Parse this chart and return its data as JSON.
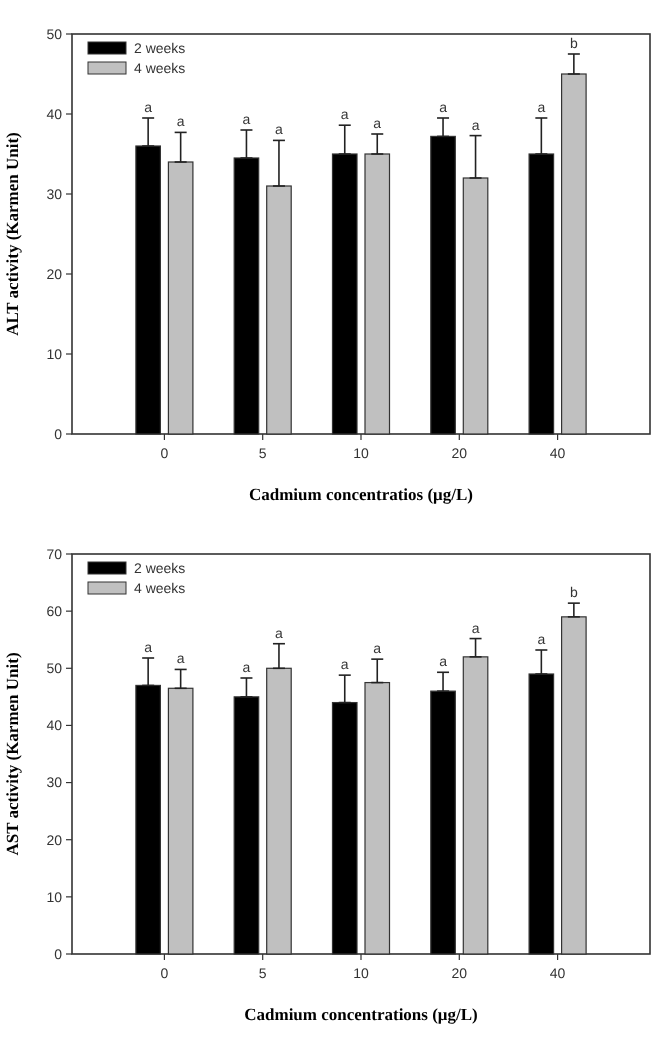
{
  "chart_data": [
    {
      "type": "bar",
      "xlabel": "Cadmium concentratios (μg/L)",
      "ylabel": "ALT activity (Karmen Unit)",
      "categories": [
        "0",
        "5",
        "10",
        "20",
        "40"
      ],
      "ylim": [
        0,
        50
      ],
      "yticks": [
        0,
        10,
        20,
        30,
        40,
        50
      ],
      "legend": "top left",
      "series": [
        {
          "name": "2 weeks",
          "color": "#000000",
          "values": [
            36,
            34.5,
            35,
            37.2,
            35
          ],
          "errors": [
            [
              36,
              39.5
            ],
            [
              34.5,
              38
            ],
            [
              35,
              38.6
            ],
            [
              37.2,
              39.5
            ],
            [
              35,
              39.5
            ]
          ]
        },
        {
          "name": "4 weeks",
          "color": "#c0c0c0",
          "values": [
            34,
            31,
            35,
            32,
            45
          ],
          "errors": [
            [
              34,
              37.7
            ],
            [
              31,
              36.7
            ],
            [
              35,
              37.5
            ],
            [
              32,
              37.3
            ],
            [
              45,
              47.5
            ]
          ]
        }
      ],
      "annotations": [
        "a",
        "a",
        "a",
        "a",
        "a",
        "a",
        "a",
        "a",
        "a",
        "b"
      ]
    },
    {
      "type": "bar",
      "xlabel": "Cadmium concentrations (μg/L)",
      "ylabel": "AST activity (Karmen Unit)",
      "categories": [
        "0",
        "5",
        "10",
        "20",
        "40"
      ],
      "ylim": [
        0,
        70
      ],
      "yticks": [
        0,
        10,
        20,
        30,
        40,
        50,
        60,
        70
      ],
      "legend": "top left",
      "series": [
        {
          "name": "2 weeks",
          "color": "#000000",
          "values": [
            47,
            45,
            44,
            46,
            49
          ],
          "errors": [
            [
              47,
              51.8
            ],
            [
              45,
              48.3
            ],
            [
              44,
              48.8
            ],
            [
              46,
              49.3
            ],
            [
              49,
              53.2
            ]
          ]
        },
        {
          "name": "4 weeks",
          "color": "#c0c0c0",
          "values": [
            46.5,
            50,
            47.5,
            52,
            59
          ],
          "errors": [
            [
              46.5,
              49.8
            ],
            [
              50,
              54.3
            ],
            [
              47.5,
              51.6
            ],
            [
              52,
              55.2
            ],
            [
              59,
              61.4
            ]
          ]
        }
      ],
      "annotations": [
        "a",
        "a",
        "a",
        "a",
        "a",
        "a",
        "a",
        "a",
        "a",
        "b"
      ]
    }
  ]
}
